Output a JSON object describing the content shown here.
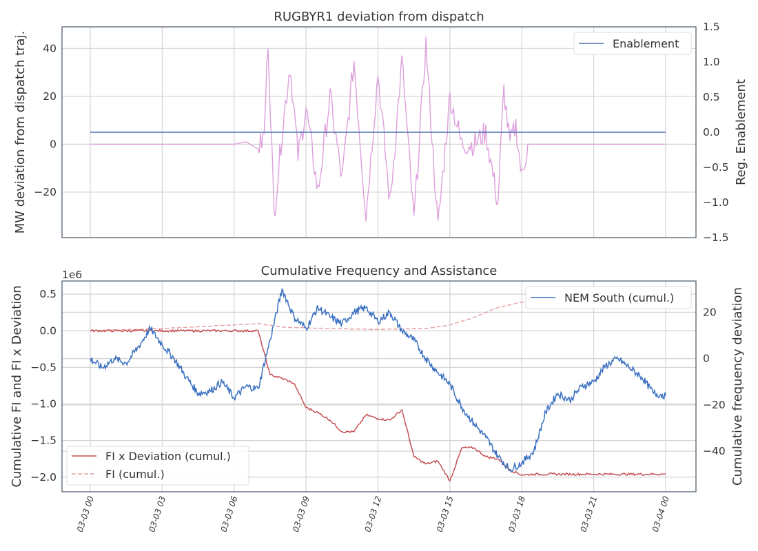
{
  "chart_data": [
    {
      "type": "line",
      "title": "RUGBYR1 deviation from dispatch",
      "ylabel": "MW deviation from dispatch traj.",
      "y2label": "Reg. Enablement",
      "ylim": [
        -39,
        49
      ],
      "y2lim": [
        -1.5,
        1.5
      ],
      "yticks": [
        -20,
        0,
        20,
        40
      ],
      "y2ticks": [
        -1.5,
        -1.0,
        -0.5,
        0.0,
        0.5,
        1.0,
        1.5
      ],
      "grid": true,
      "legend_position": "top-right",
      "colors": {
        "deviation": "#dda0dd",
        "enablement": "#4c72b0"
      },
      "series": [
        {
          "name": "Enablement",
          "axis": "right",
          "x": [
            "03-03 00:00",
            "03-04 00:00"
          ],
          "values": [
            0.0,
            0.0
          ]
        },
        {
          "axis": "left",
          "x": [
            "03-03 00:00",
            "03-03 06:00",
            "03-03 06:30",
            "03-03 07:00",
            "03-03 07:15",
            "03-03 07:25",
            "03-03 07:40",
            "03-03 08:00",
            "03-03 08:20",
            "03-03 08:40",
            "03-03 09:00",
            "03-03 09:30",
            "03-03 10:00",
            "03-03 10:30",
            "03-03 11:00",
            "03-03 11:30",
            "03-03 12:00",
            "03-03 12:30",
            "03-03 13:00",
            "03-03 13:30",
            "03-03 14:00",
            "03-03 14:30",
            "03-03 15:00",
            "03-03 15:30",
            "03-03 16:00",
            "03-03 16:30",
            "03-03 17:00",
            "03-03 17:15",
            "03-03 17:30",
            "03-03 17:45",
            "03-03 18:00",
            "03-03 18:15",
            "03-03 18:30",
            "03-04 00:00"
          ],
          "values": [
            0,
            0,
            1,
            -2,
            3,
            44,
            -30,
            5,
            33,
            -5,
            15,
            -20,
            20,
            -15,
            35,
            -30,
            30,
            -25,
            35,
            -32,
            42,
            -35,
            20,
            0,
            0,
            5,
            -25,
            23,
            0,
            8,
            -14,
            0,
            0,
            0
          ]
        }
      ],
      "xticks": [
        "03-03 00",
        "03-03 03",
        "03-03 06",
        "03-03 09",
        "03-03 12",
        "03-03 15",
        "03-03 18",
        "03-03 21",
        "03-04 00"
      ]
    },
    {
      "type": "line",
      "title": "Cumulative Frequency and Assistance",
      "ylabel": "Cumulative FI and FI x Deviation",
      "y2label": "Cumulative frequency deviation",
      "y_offset_text": "1e6",
      "ylim": [
        -2.2,
        0.68
      ],
      "y2lim": [
        -57.5,
        33.5
      ],
      "yticks": [
        -2.0,
        -1.5,
        -1.0,
        -0.5,
        0.0,
        0.5
      ],
      "y2ticks": [
        -40,
        -20,
        0,
        20
      ],
      "grid": true,
      "legend_positions": {
        "right_axis": "top-right",
        "left_axis": "bottom-left"
      },
      "colors": {
        "nem_south": "#3a70c2",
        "fi_dev": "#c44e52",
        "fi": "#e8a3a5"
      },
      "series": [
        {
          "name": "NEM South (cumul.)",
          "axis": "right",
          "x": [
            "03-03 00:00",
            "03-03 00:30",
            "03-03 01:00",
            "03-03 01:30",
            "03-03 02:00",
            "03-03 02:30",
            "03-03 03:00",
            "03-03 03:30",
            "03-03 04:00",
            "03-03 04:30",
            "03-03 05:00",
            "03-03 05:30",
            "03-03 06:00",
            "03-03 06:30",
            "03-03 07:00",
            "03-03 07:30",
            "03-03 08:00",
            "03-03 08:30",
            "03-03 09:00",
            "03-03 09:30",
            "03-03 10:00",
            "03-03 10:30",
            "03-03 11:00",
            "03-03 11:30",
            "03-03 12:00",
            "03-03 12:30",
            "03-03 13:00",
            "03-03 13:30",
            "03-03 14:00",
            "03-03 14:30",
            "03-03 15:00",
            "03-03 15:30",
            "03-03 16:00",
            "03-03 16:30",
            "03-03 17:00",
            "03-03 17:30",
            "03-03 18:00",
            "03-03 18:30",
            "03-03 19:00",
            "03-03 19:30",
            "03-03 20:00",
            "03-03 20:30",
            "03-03 21:00",
            "03-03 21:30",
            "03-03 22:00",
            "03-03 22:30",
            "03-03 23:00",
            "03-03 23:30",
            "03-04 00:00"
          ],
          "values": [
            0,
            -4,
            0,
            -2,
            5,
            13,
            6,
            0,
            -8,
            -15,
            -14,
            -10,
            -17,
            -12,
            -13,
            8,
            30,
            18,
            13,
            22,
            18,
            15,
            20,
            22,
            16,
            20,
            12,
            8,
            0,
            -6,
            -11,
            -21,
            -28,
            -34,
            -42,
            -48,
            -45,
            -40,
            -23,
            -15,
            -18,
            -12,
            -10,
            -3,
            0,
            -4,
            -8,
            -15,
            -16
          ]
        },
        {
          "name": "FI x Deviation (cumul.)",
          "axis": "left",
          "x": [
            "03-03 00:00",
            "03-03 07:00",
            "03-03 07:30",
            "03-03 08:00",
            "03-03 08:30",
            "03-03 09:00",
            "03-03 09:30",
            "03-03 10:00",
            "03-03 10:30",
            "03-03 11:00",
            "03-03 11:30",
            "03-03 12:00",
            "03-03 12:30",
            "03-03 13:00",
            "03-03 13:30",
            "03-03 14:00",
            "03-03 14:30",
            "03-03 15:00",
            "03-03 15:30",
            "03-03 16:00",
            "03-03 16:30",
            "03-03 17:00",
            "03-03 17:30",
            "03-03 18:00",
            "03-03 18:30",
            "03-04 00:00"
          ],
          "values": [
            0.0,
            0.0,
            -0.6,
            -0.65,
            -0.72,
            -1.05,
            -1.12,
            -1.22,
            -1.38,
            -1.38,
            -1.15,
            -1.2,
            -1.22,
            -1.08,
            -1.72,
            -1.82,
            -1.78,
            -2.05,
            -1.6,
            -1.6,
            -1.72,
            -1.75,
            -1.9,
            -1.97,
            -1.96,
            -1.96
          ]
        },
        {
          "name": "FI (cumul.)",
          "axis": "left",
          "x": [
            "03-03 00:00",
            "03-03 03:00",
            "03-03 06:00",
            "03-03 07:00",
            "03-03 08:00",
            "03-03 10:00",
            "03-03 12:00",
            "03-03 14:00",
            "03-03 15:00",
            "03-03 16:00",
            "03-03 17:00",
            "03-03 18:00",
            "03-03 19:00",
            "03-03 20:00"
          ],
          "values": [
            0.0,
            0.03,
            0.08,
            0.1,
            0.05,
            0.03,
            0.02,
            0.03,
            0.08,
            0.18,
            0.32,
            0.39,
            0.41,
            0.42
          ]
        }
      ],
      "xticks": [
        "03-03 00",
        "03-03 03",
        "03-03 06",
        "03-03 09",
        "03-03 12",
        "03-03 15",
        "03-03 18",
        "03-03 21",
        "03-04 00"
      ]
    }
  ]
}
